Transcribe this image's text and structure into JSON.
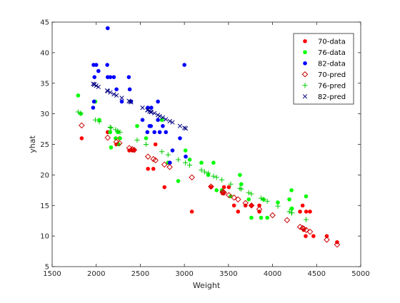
{
  "chart_data": {
    "type": "scatter",
    "title": "",
    "xlabel": "Weight",
    "ylabel": "yhat",
    "xlim": [
      1500,
      5000
    ],
    "ylim": [
      5,
      45
    ],
    "xticks": [
      1500,
      2000,
      2500,
      3000,
      3500,
      4000,
      4500,
      5000
    ],
    "yticks": [
      5,
      10,
      15,
      20,
      25,
      30,
      35,
      40,
      45
    ],
    "grid": false,
    "legend_position": "top-right",
    "series": [
      {
        "name": "70-data",
        "color": "#ff0000",
        "marker": "dot",
        "points": [
          [
            1835,
            26
          ],
          [
            2130,
            27
          ],
          [
            2228,
            25
          ],
          [
            2264,
            26
          ],
          [
            2375,
            24
          ],
          [
            2408,
            24
          ],
          [
            2430,
            24
          ],
          [
            2587,
            21
          ],
          [
            2648,
            21
          ],
          [
            2672,
            25
          ],
          [
            2774,
            18
          ],
          [
            2833,
            22
          ],
          [
            3085,
            14
          ],
          [
            3302,
            18
          ],
          [
            3449,
            18
          ],
          [
            3439,
            17
          ],
          [
            3433,
            17
          ],
          [
            3504,
            18
          ],
          [
            3563,
            15
          ],
          [
            3609,
            14
          ],
          [
            3693,
            15
          ],
          [
            3761,
            15
          ],
          [
            3850,
            15
          ],
          [
            3850,
            14
          ],
          [
            4312,
            14
          ],
          [
            4341,
            15
          ],
          [
            4354,
            11
          ],
          [
            4382,
            14
          ],
          [
            4425,
            14
          ],
          [
            4464,
            10
          ],
          [
            4615,
            10
          ],
          [
            4732,
            9
          ],
          [
            4376,
            10
          ]
        ]
      },
      {
        "name": "76-data",
        "color": "#00ff00",
        "marker": "dot",
        "points": [
          [
            1795,
            33
          ],
          [
            1825,
            30
          ],
          [
            1990,
            32
          ],
          [
            2035,
            29
          ],
          [
            2158,
            27
          ],
          [
            2168,
            24.5
          ],
          [
            2220,
            26
          ],
          [
            2245,
            27
          ],
          [
            2255,
            25
          ],
          [
            2270,
            26
          ],
          [
            2464,
            28
          ],
          [
            2565,
            26
          ],
          [
            2745,
            29
          ],
          [
            2815,
            22
          ],
          [
            2930,
            19
          ],
          [
            3012,
            24
          ],
          [
            3060,
            22.5
          ],
          [
            3193,
            22
          ],
          [
            3270,
            20
          ],
          [
            3330,
            22
          ],
          [
            3365,
            17.5
          ],
          [
            3425,
            17.5
          ],
          [
            3525,
            16.5
          ],
          [
            3630,
            20
          ],
          [
            3645,
            18.5
          ],
          [
            3730,
            16
          ],
          [
            3760,
            13
          ],
          [
            3870,
            13
          ],
          [
            3898,
            16
          ],
          [
            3940,
            13
          ],
          [
            4060,
            15.5
          ],
          [
            4190,
            16
          ],
          [
            4215,
            17.5
          ],
          [
            4220,
            14.5
          ],
          [
            4380,
            16.5
          ],
          [
            4215,
            14.5
          ]
        ]
      },
      {
        "name": "82-data",
        "color": "#0000ff",
        "marker": "dot",
        "points": [
          [
            1965,
            31
          ],
          [
            1975,
            32
          ],
          [
            1970,
            38
          ],
          [
            1980,
            36
          ],
          [
            2000,
            38
          ],
          [
            2025,
            37
          ],
          [
            2130,
            44
          ],
          [
            2125,
            38
          ],
          [
            2130,
            36
          ],
          [
            2160,
            36
          ],
          [
            2200,
            36
          ],
          [
            2230,
            34
          ],
          [
            2290,
            32
          ],
          [
            2370,
            36
          ],
          [
            2380,
            34
          ],
          [
            2395,
            32
          ],
          [
            2525,
            29
          ],
          [
            2585,
            31
          ],
          [
            2605,
            28
          ],
          [
            2620,
            28
          ],
          [
            2660,
            27
          ],
          [
            2700,
            32
          ],
          [
            2720,
            27
          ],
          [
            2755,
            28
          ],
          [
            2790,
            27
          ],
          [
            2835,
            22
          ],
          [
            2865,
            24
          ],
          [
            2950,
            26
          ],
          [
            3000,
            38
          ],
          [
            3015,
            23
          ],
          [
            2580,
            27
          ],
          [
            2625,
            31
          ],
          [
            2700,
            29
          ]
        ]
      },
      {
        "name": "70-pred",
        "color": "#cc0000",
        "marker": "open-diamond",
        "points": [
          [
            1835,
            28.1
          ],
          [
            2130,
            26.1
          ],
          [
            2228,
            25.4
          ],
          [
            2264,
            25.2
          ],
          [
            2375,
            24.4
          ],
          [
            2408,
            24.2
          ],
          [
            2430,
            24.1
          ],
          [
            2587,
            23
          ],
          [
            2648,
            22.6
          ],
          [
            2672,
            22.4
          ],
          [
            2774,
            21.7
          ],
          [
            2833,
            21.3
          ],
          [
            3085,
            19.6
          ],
          [
            3302,
            18.1
          ],
          [
            3433,
            17.2
          ],
          [
            3439,
            17.2
          ],
          [
            3449,
            17.1
          ],
          [
            3504,
            16.7
          ],
          [
            3563,
            16.3
          ],
          [
            3609,
            16
          ],
          [
            3693,
            15.4
          ],
          [
            3761,
            15
          ],
          [
            3850,
            14.4
          ],
          [
            4000,
            13.4
          ],
          [
            4165,
            12.6
          ],
          [
            4312,
            11.5
          ],
          [
            4341,
            11.3
          ],
          [
            4354,
            11.2
          ],
          [
            4382,
            11
          ],
          [
            4425,
            10.7
          ],
          [
            4615,
            9.4
          ],
          [
            4732,
            8.6
          ]
        ]
      },
      {
        "name": "76-pred",
        "color": "#00cc00",
        "marker": "plus",
        "points": [
          [
            1795,
            30.3
          ],
          [
            1825,
            30.1
          ],
          [
            1990,
            29
          ],
          [
            2035,
            28.7
          ],
          [
            2158,
            27.8
          ],
          [
            2168,
            27.7
          ],
          [
            2220,
            27.4
          ],
          [
            2245,
            27.2
          ],
          [
            2270,
            27
          ],
          [
            2464,
            25.7
          ],
          [
            2565,
            25
          ],
          [
            2745,
            23.8
          ],
          [
            2815,
            23.3
          ],
          [
            2930,
            22.5
          ],
          [
            3012,
            22
          ],
          [
            3060,
            21.6
          ],
          [
            3193,
            20.8
          ],
          [
            3230,
            20.5
          ],
          [
            3270,
            20.3
          ],
          [
            3330,
            19.8
          ],
          [
            3365,
            19.6
          ],
          [
            3425,
            19.2
          ],
          [
            3525,
            18.5
          ],
          [
            3630,
            17.8
          ],
          [
            3645,
            17.7
          ],
          [
            3730,
            17.1
          ],
          [
            3760,
            16.9
          ],
          [
            3870,
            16.2
          ],
          [
            3898,
            16
          ],
          [
            3940,
            15.7
          ],
          [
            4060,
            14.9
          ],
          [
            4190,
            14
          ],
          [
            4215,
            13.8
          ],
          [
            4220,
            13.8
          ],
          [
            4380,
            12.7
          ]
        ]
      },
      {
        "name": "82-pred",
        "color": "#000080",
        "marker": "cross",
        "points": [
          [
            1965,
            34.9
          ],
          [
            1975,
            34.8
          ],
          [
            1980,
            34.8
          ],
          [
            2000,
            34.6
          ],
          [
            2025,
            34.4
          ],
          [
            2125,
            33.8
          ],
          [
            2130,
            33.7
          ],
          [
            2160,
            33.5
          ],
          [
            2200,
            33.2
          ],
          [
            2230,
            33
          ],
          [
            2290,
            32.6
          ],
          [
            2370,
            32.1
          ],
          [
            2380,
            32
          ],
          [
            2395,
            31.9
          ],
          [
            2525,
            31
          ],
          [
            2580,
            30.6
          ],
          [
            2585,
            30.6
          ],
          [
            2605,
            30.4
          ],
          [
            2620,
            30.3
          ],
          [
            2625,
            30.3
          ],
          [
            2660,
            30.1
          ],
          [
            2700,
            29.8
          ],
          [
            2720,
            29.6
          ],
          [
            2755,
            29.4
          ],
          [
            2790,
            29.1
          ],
          [
            2835,
            28.8
          ],
          [
            2865,
            28.6
          ],
          [
            2950,
            28
          ],
          [
            3000,
            27.7
          ],
          [
            3015,
            27.6
          ]
        ]
      }
    ]
  }
}
